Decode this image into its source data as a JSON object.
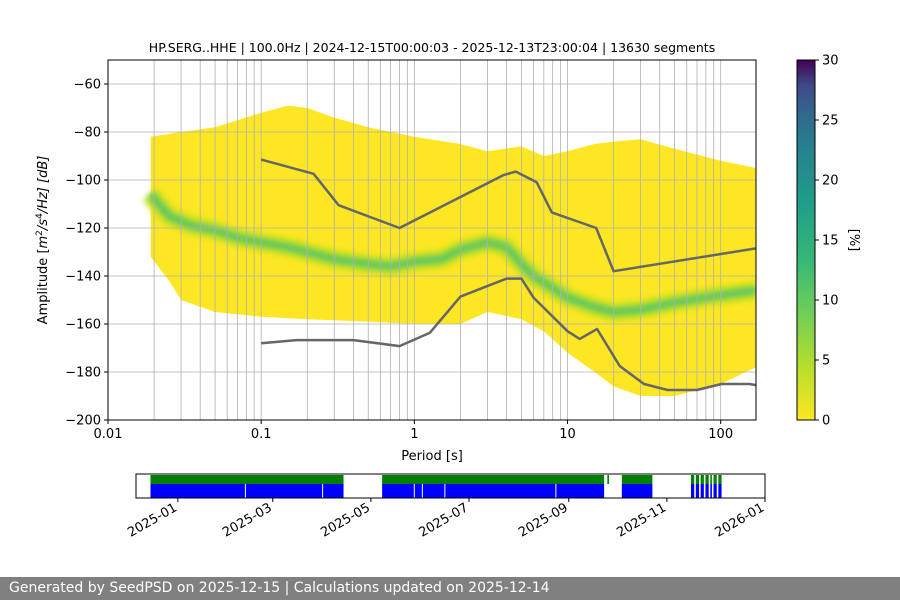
{
  "chart_data": [
    {
      "type": "heatmap",
      "title": "HP.SERG..HHE | 100.0Hz | 2024-12-15T00:00:03 - 2025-12-13T23:00:04 | 13630 segments",
      "xlabel": "Period [s]",
      "ylabel_parts": {
        "prefix": "Amplitude [",
        "m": "m",
        "m_exp": "2",
        "mid": "/s",
        "s_exp": "4",
        "suffix": "/Hz] [dB]"
      },
      "x_scale": "log",
      "xlim": [
        0.01,
        170
      ],
      "ylim": [
        -200,
        -50
      ],
      "x_tick_labels": [
        "0.01",
        "0.1",
        "1",
        "10",
        "100"
      ],
      "x_tick_values": [
        0.01,
        0.1,
        1,
        10,
        100
      ],
      "y_tick_values": [
        -200,
        -180,
        -160,
        -140,
        -120,
        -100,
        -80,
        -60
      ],
      "y_tick_labels": [
        "−200",
        "−180",
        "−160",
        "−140",
        "−120",
        "−100",
        "−80",
        "−60"
      ],
      "grid": true,
      "colormap": "viridis",
      "colorbar": {
        "label": "[%]",
        "min": 0,
        "max": 30,
        "ticks": [
          "0",
          "5",
          "10",
          "15",
          "20",
          "25",
          "30"
        ],
        "tick_values": [
          0,
          5,
          10,
          15,
          20,
          25,
          30
        ]
      },
      "psd_mode_curve": {
        "period": [
          0.019,
          0.025,
          0.035,
          0.05,
          0.07,
          0.1,
          0.15,
          0.2,
          0.3,
          0.5,
          0.7,
          1.0,
          1.5,
          2.0,
          3.0,
          4.0,
          5.0,
          6.0,
          8.0,
          10.0,
          15.0,
          20.0,
          30.0,
          50.0,
          100.0,
          170.0
        ],
        "amplitude": [
          -106,
          -115,
          -119,
          -121,
          -124,
          -126,
          -128,
          -130,
          -133,
          -135,
          -136,
          -134,
          -133,
          -129,
          -126,
          -128,
          -135,
          -140,
          -145,
          -149,
          -153,
          -155,
          -154,
          -151,
          -148,
          -146
        ]
      },
      "psd_density_top": {
        "period": [
          0.019,
          0.03,
          0.05,
          0.1,
          0.15,
          0.2,
          0.3,
          0.5,
          1.0,
          2.0,
          3.0,
          5.0,
          7.0,
          10.0,
          15.0,
          20.0,
          30.0,
          50.0,
          100.0,
          170.0
        ],
        "amplitude": [
          -82,
          -80,
          -78,
          -72,
          -69,
          -70,
          -74,
          -78,
          -82,
          -85,
          -88,
          -86,
          -90,
          -88,
          -85,
          -84,
          -83,
          -87,
          -92,
          -95
        ]
      },
      "psd_density_bottom": {
        "period": [
          0.019,
          0.025,
          0.03,
          0.05,
          0.1,
          0.2,
          0.5,
          1.0,
          2.0,
          3.0,
          5.0,
          7.0,
          10.0,
          15.0,
          20.0,
          30.0,
          50.0,
          100.0,
          170.0
        ],
        "amplitude": [
          -132,
          -142,
          -150,
          -155,
          -157,
          -158,
          -159,
          -160,
          -160,
          -155,
          -158,
          -163,
          -172,
          -180,
          -186,
          -190,
          -190,
          -185,
          -178
        ]
      },
      "series": [
        {
          "kind": "upper-noise-model",
          "period": [
            0.1,
            0.22,
            0.32,
            0.8,
            3.8,
            4.6,
            6.3,
            7.9,
            15.4,
            20.0,
            170.0
          ],
          "amplitude": [
            -91.5,
            -97.4,
            -110.5,
            -120.0,
            -98.0,
            -96.5,
            -101.0,
            -113.5,
            -120.0,
            -138.0,
            -128.5
          ]
        },
        {
          "kind": "lower-noise-model",
          "period": [
            0.1,
            0.17,
            0.4,
            0.8,
            1.26,
            2.0,
            4.0,
            5.0,
            6.0,
            10.0,
            12.0,
            15.6,
            21.9,
            31.6,
            45.0,
            70.0,
            101.0,
            154.0,
            170.0
          ],
          "amplitude": [
            -168.0,
            -166.7,
            -166.7,
            -169.2,
            -163.7,
            -148.6,
            -141.1,
            -141.1,
            -149.0,
            -163.0,
            -166.2,
            -162.1,
            -177.5,
            -185.0,
            -187.5,
            -187.5,
            -185.0,
            -185.0,
            -185.5
          ]
        }
      ]
    },
    {
      "type": "timeline",
      "x_tick_labels": [
        "2025-01",
        "2025-03",
        "2025-05",
        "2025-07",
        "2025-09",
        "2025-11",
        "2026-01"
      ],
      "x_tick_dates": [
        "2025-01-01",
        "2025-03-01",
        "2025-05-01",
        "2025-07-01",
        "2025-09-01",
        "2025-11-01",
        "2026-01-01"
      ],
      "xlim": [
        "2024-12-06",
        "2026-01-01"
      ],
      "data_available_color": "#008000",
      "psd_used_color": "#0000ff",
      "green_spans": [
        [
          "2024-12-15",
          "2025-04-14"
        ],
        [
          "2025-05-08",
          "2025-09-23"
        ],
        [
          "2025-09-25",
          "2025-09-26"
        ],
        [
          "2025-10-04",
          "2025-10-23"
        ],
        [
          "2025-11-16",
          "2025-11-18"
        ],
        [
          "2025-11-19",
          "2025-11-21"
        ],
        [
          "2025-11-22",
          "2025-11-24"
        ],
        [
          "2025-11-25",
          "2025-11-27"
        ],
        [
          "2025-11-28",
          "2025-11-29"
        ],
        [
          "2025-11-30",
          "2025-12-02"
        ],
        [
          "2025-12-03",
          "2025-12-05"
        ]
      ],
      "blue_spans": [
        [
          "2024-12-15",
          "2025-04-14"
        ],
        [
          "2025-05-08",
          "2025-09-23"
        ],
        [
          "2025-10-04",
          "2025-10-23"
        ],
        [
          "2025-11-16",
          "2025-11-18"
        ],
        [
          "2025-11-19",
          "2025-11-21"
        ],
        [
          "2025-11-22",
          "2025-11-24"
        ],
        [
          "2025-11-25",
          "2025-11-27"
        ],
        [
          "2025-11-28",
          "2025-11-29"
        ],
        [
          "2025-11-30",
          "2025-12-02"
        ],
        [
          "2025-12-03",
          "2025-12-05"
        ]
      ],
      "gap_marks": [
        "2025-02-12",
        "2025-04-01",
        "2025-05-28",
        "2025-06-02",
        "2025-06-16",
        "2025-08-24"
      ]
    }
  ],
  "footer": {
    "text": "Generated by SeedPSD on 2025-12-15 | Calculations updated on 2025-12-14"
  }
}
